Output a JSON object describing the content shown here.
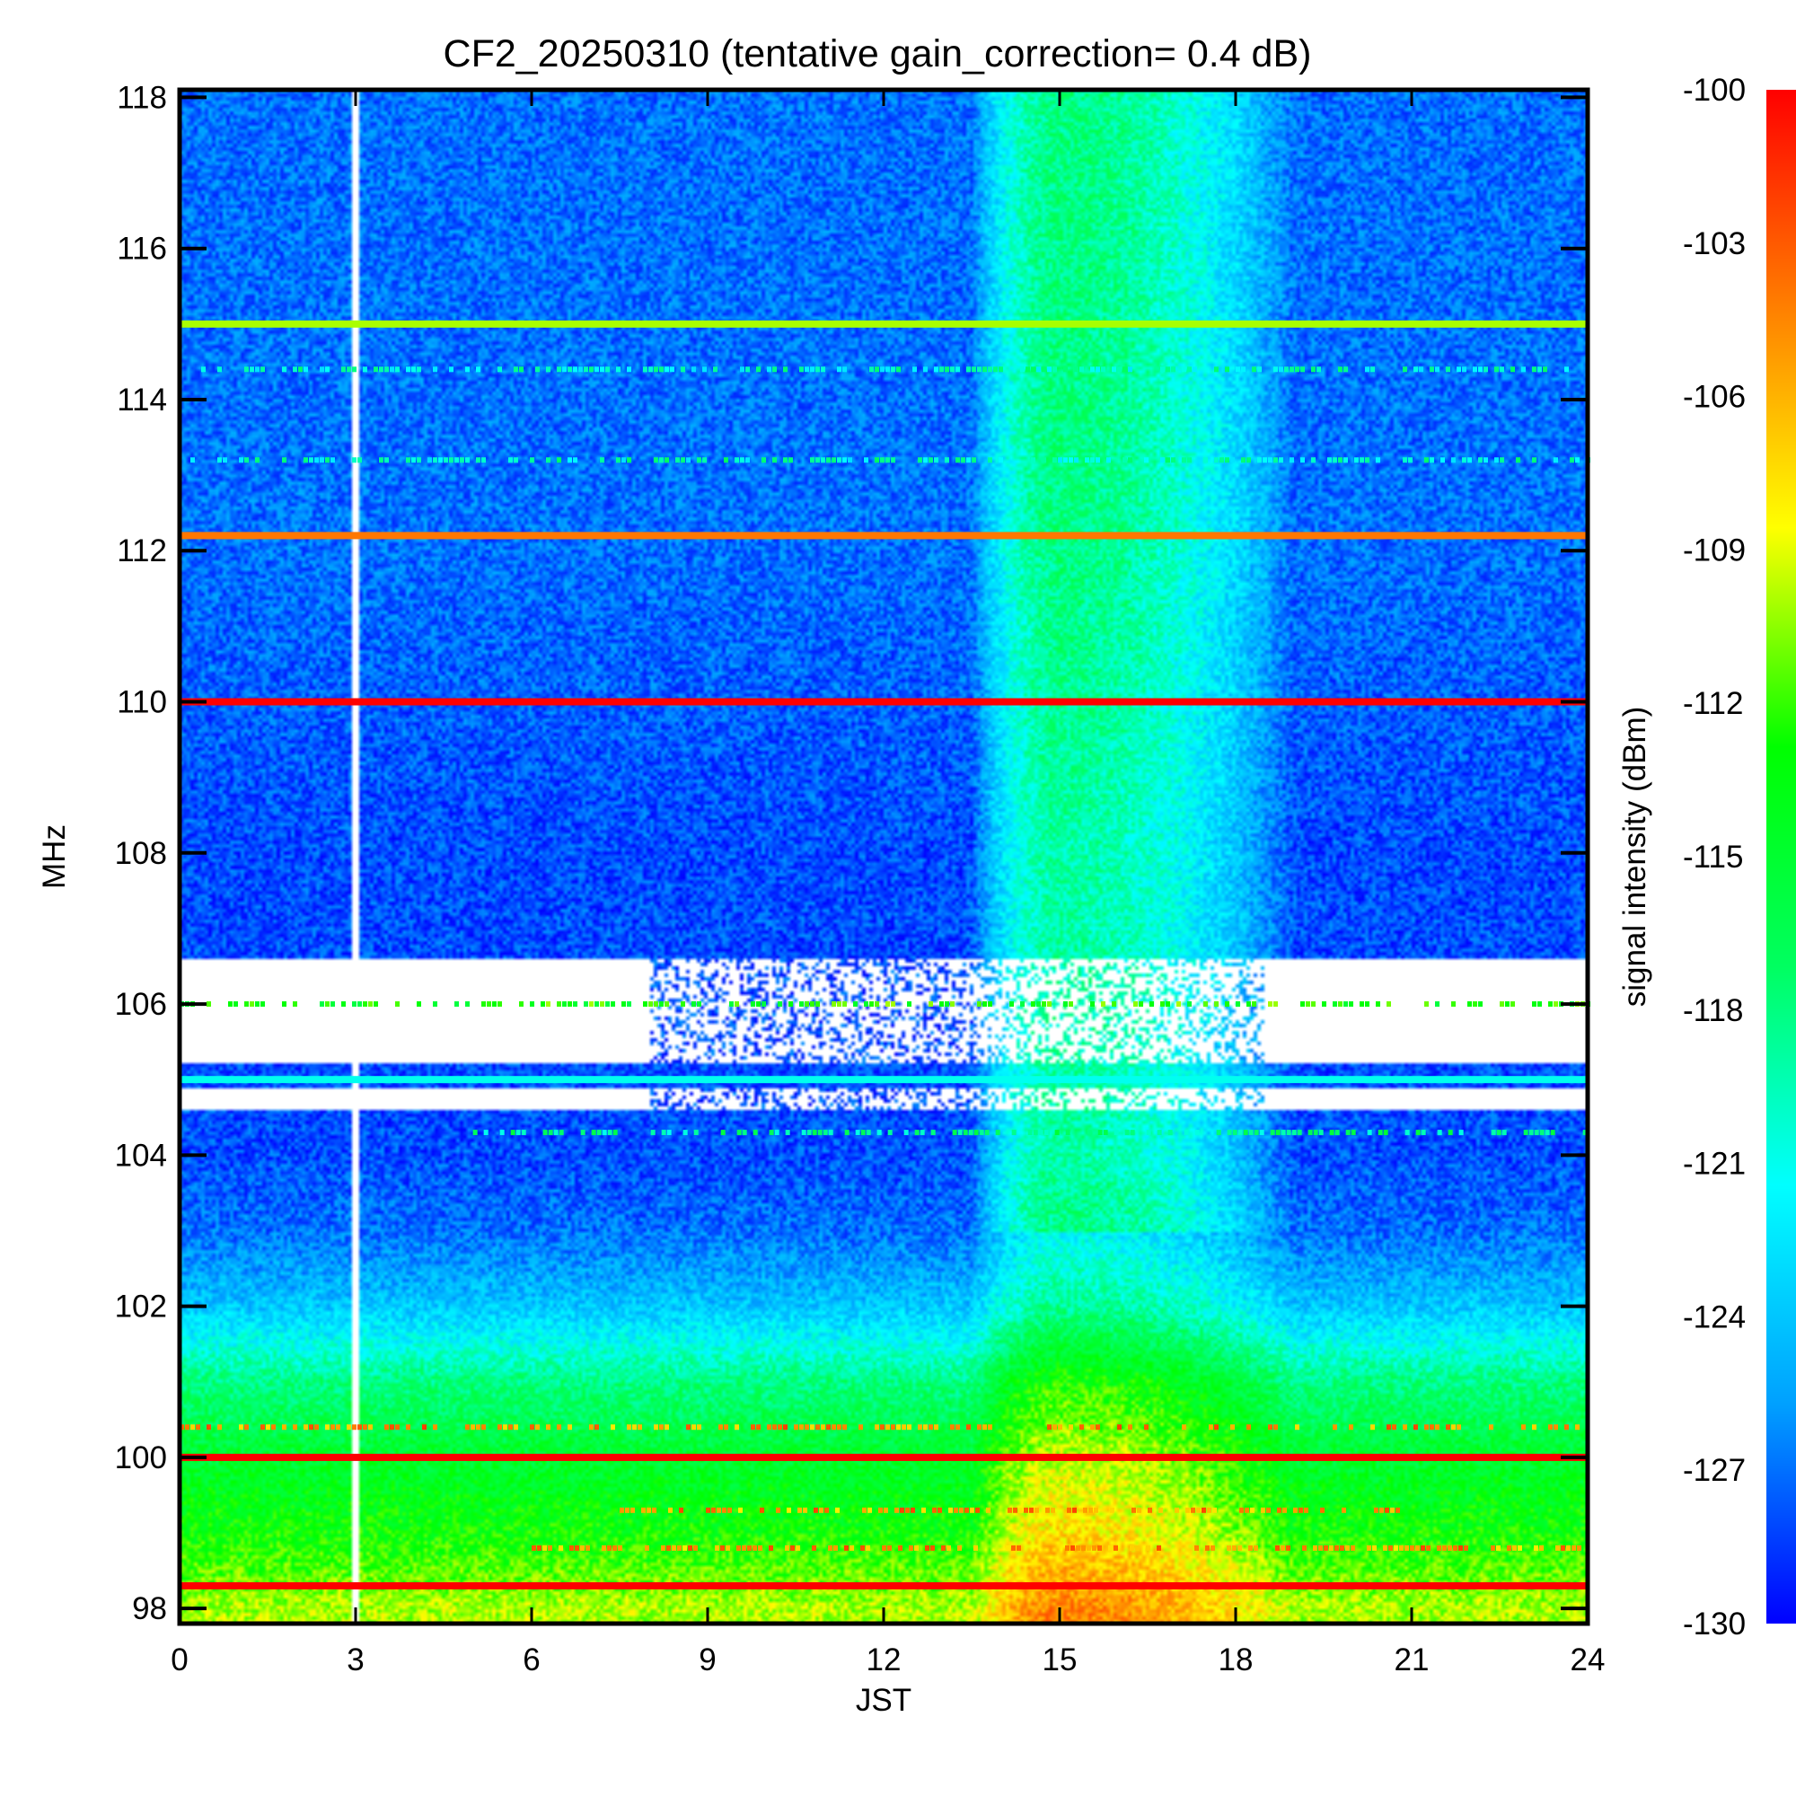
{
  "chart_data": {
    "type": "heatmap",
    "title": "CF2_20250310 (tentative gain_correction=  0.4 dB)",
    "xlabel": "JST",
    "ylabel": "MHz",
    "colorbar_label": "signal intensity (dBm)",
    "xlim": [
      0,
      24
    ],
    "ylim": [
      97.8,
      118.1
    ],
    "x_ticks": [
      "0",
      "3",
      "6",
      "9",
      "12",
      "15",
      "18",
      "21",
      "24"
    ],
    "y_ticks": [
      "98",
      "100",
      "102",
      "104",
      "106",
      "108",
      "110",
      "112",
      "114",
      "116",
      "118"
    ],
    "colorbar_range": [
      -130,
      -100
    ],
    "colorbar_ticks": [
      "-100",
      "-103",
      "-106",
      "-109",
      "-112",
      "-115",
      "-118",
      "-121",
      "-124",
      "-127",
      "-130"
    ],
    "colorscale": [
      "#0000ff",
      "#00a0ff",
      "#00ffff",
      "#00ff60",
      "#00ff00",
      "#ffff00",
      "#ff8000",
      "#ff0000"
    ],
    "background_dbm_by_frequency": [
      {
        "mhz": 98,
        "dbm": -110
      },
      {
        "mhz": 99,
        "dbm": -113
      },
      {
        "mhz": 100,
        "dbm": -115
      },
      {
        "mhz": 101,
        "dbm": -118
      },
      {
        "mhz": 102,
        "dbm": -124
      },
      {
        "mhz": 103,
        "dbm": -127
      },
      {
        "mhz": 104,
        "dbm": -128
      },
      {
        "mhz": 108,
        "dbm": -128
      },
      {
        "mhz": 112,
        "dbm": -127
      },
      {
        "mhz": 118,
        "dbm": -127
      }
    ],
    "daytime_enhancement": {
      "jst_start": 13.5,
      "jst_end": 19,
      "peak_jst": 15,
      "peak_gain_db": 9
    },
    "persistent_signals": [
      {
        "mhz": 98.3,
        "dbm": -100
      },
      {
        "mhz": 100.0,
        "dbm": -100
      },
      {
        "mhz": 105.0,
        "dbm": -121
      },
      {
        "mhz": 110.0,
        "dbm": -100
      },
      {
        "mhz": 112.2,
        "dbm": -104
      },
      {
        "mhz": 115.0,
        "dbm": -110
      }
    ],
    "intermittent_signals": [
      {
        "mhz": 100.4,
        "dbm": -102,
        "jst_start": 0,
        "jst_end": 24
      },
      {
        "mhz": 99.3,
        "dbm": -102,
        "jst_start": 7.5,
        "jst_end": 21
      },
      {
        "mhz": 98.8,
        "dbm": -102,
        "jst_start": 6,
        "jst_end": 24
      },
      {
        "mhz": 106.0,
        "dbm": -110,
        "jst_start": 0,
        "jst_end": 24
      },
      {
        "mhz": 104.3,
        "dbm": -115,
        "jst_start": 5,
        "jst_end": 24
      },
      {
        "mhz": 114.4,
        "dbm": -117,
        "jst_start": 0,
        "jst_end": 24
      },
      {
        "mhz": 113.2,
        "dbm": -117,
        "jst_start": 0,
        "jst_end": 24
      }
    ],
    "blank_frequency_bands": [
      {
        "mhz_min": 105.2,
        "mhz_max": 106.6
      },
      {
        "mhz_min": 104.6,
        "mhz_max": 104.9
      }
    ],
    "data_gap_jst": 3.0,
    "grid": false
  }
}
